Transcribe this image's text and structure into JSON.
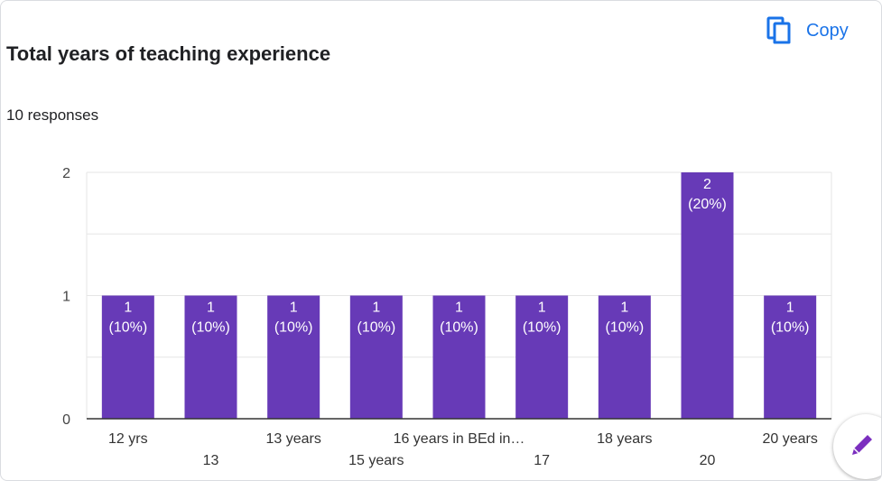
{
  "header": {
    "title": "Total years of teaching experience",
    "responses": "10 responses",
    "copy_label": "Copy"
  },
  "icons": {
    "copy": "copy-icon",
    "edit": "pencil-icon"
  },
  "colors": {
    "bar": "#673ab7",
    "accent": "#1a73e8",
    "fab_icon": "#7b2fbf"
  },
  "chart_data": {
    "type": "bar",
    "title": "Total years of teaching experience",
    "categories": [
      "12 yrs",
      "13",
      "13 years",
      "15 years",
      "16 years in BEd in…",
      "17",
      "18 years",
      "20",
      "20 years"
    ],
    "values": [
      1,
      1,
      1,
      1,
      1,
      1,
      1,
      2,
      1
    ],
    "value_labels": [
      "1",
      "1",
      "1",
      "1",
      "1",
      "1",
      "1",
      "2",
      "1"
    ],
    "percent_labels": [
      "(10%)",
      "(10%)",
      "(10%)",
      "(10%)",
      "(10%)",
      "(10%)",
      "(10%)",
      "(20%)",
      "(10%)"
    ],
    "y_ticks": [
      "0",
      "1",
      "2"
    ],
    "ylim": [
      0,
      2
    ],
    "grid": true,
    "legend": "none"
  }
}
